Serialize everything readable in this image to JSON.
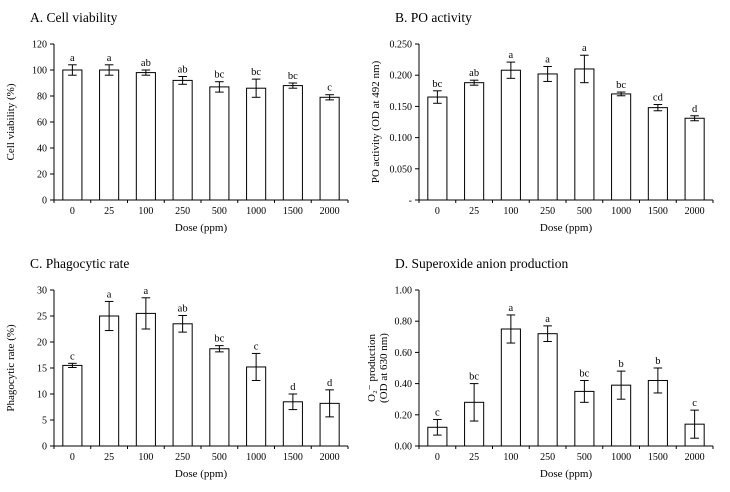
{
  "chart_data": [
    {
      "type": "bar",
      "panel": "A",
      "title": "A. Cell viability",
      "xlabel": "Dose (ppm)",
      "ylabel": "Cell viability  (%)",
      "ylim": [
        0,
        120
      ],
      "ytick_labels": [
        "0",
        "20",
        "40",
        "60",
        "80",
        "100",
        "120"
      ],
      "categories": [
        "0",
        "25",
        "100",
        "250",
        "500",
        "1000",
        "1500",
        "2000"
      ],
      "values": [
        100,
        100,
        98,
        92,
        87,
        86,
        88,
        79
      ],
      "errors": [
        4,
        4,
        2,
        3,
        4,
        7,
        2,
        2
      ],
      "sig_letters": [
        "a",
        "a",
        "ab",
        "ab",
        "bc",
        "bc",
        "bc",
        "c"
      ],
      "grid": false,
      "legend": "none",
      "bar_fill": "#ffffff",
      "bar_stroke": "#000000"
    },
    {
      "type": "bar",
      "panel": "B",
      "title": "B. PO activity",
      "xlabel": "Dose (ppm)",
      "ylabel": "PO activity (OD at 492 nm)",
      "ylim": [
        0,
        0.25
      ],
      "ytick_labels": [
        "-",
        "0.050",
        "0.100",
        "0.150",
        "0.200",
        "0.250"
      ],
      "categories": [
        "0",
        "25",
        "100",
        "250",
        "500",
        "1000",
        "1500",
        "2000"
      ],
      "values": [
        0.165,
        0.188,
        0.208,
        0.202,
        0.21,
        0.17,
        0.148,
        0.131
      ],
      "errors": [
        0.01,
        0.004,
        0.013,
        0.012,
        0.022,
        0.003,
        0.005,
        0.004
      ],
      "sig_letters": [
        "bc",
        "ab",
        "a",
        "a",
        "a",
        "bc",
        "cd",
        "d"
      ],
      "grid": false,
      "legend": "none",
      "bar_fill": "#ffffff",
      "bar_stroke": "#000000"
    },
    {
      "type": "bar",
      "panel": "C",
      "title": "C. Phagocytic rate",
      "xlabel": "Dose (ppm)",
      "ylabel": "Phagocytic rate (%)",
      "ylim": [
        0,
        30
      ],
      "ytick_labels": [
        "0",
        "5",
        "10",
        "15",
        "20",
        "25",
        "30"
      ],
      "categories": [
        "0",
        "25",
        "100",
        "250",
        "500",
        "1000",
        "1500",
        "2000"
      ],
      "values": [
        15.5,
        25.0,
        25.5,
        23.5,
        18.7,
        15.2,
        8.5,
        8.2
      ],
      "errors": [
        0.4,
        2.8,
        3.0,
        1.6,
        0.6,
        2.6,
        1.5,
        2.6
      ],
      "sig_letters": [
        "c",
        "a",
        "a",
        "ab",
        "bc",
        "c",
        "d",
        "d"
      ],
      "grid": false,
      "legend": "none",
      "bar_fill": "#ffffff",
      "bar_stroke": "#000000"
    },
    {
      "type": "bar",
      "panel": "D",
      "title": "D. Superoxide anion production",
      "xlabel": "Dose (ppm)",
      "ylabel": "O₂⁻ production\n(OD at  630 nm)",
      "ylim": [
        0,
        1.0
      ],
      "ytick_labels": [
        "0.00",
        "0.20",
        "0.40",
        "0.60",
        "0.80",
        "1.00"
      ],
      "categories": [
        "0",
        "25",
        "100",
        "250",
        "500",
        "1000",
        "1500",
        "2000"
      ],
      "values": [
        0.12,
        0.28,
        0.75,
        0.72,
        0.35,
        0.39,
        0.42,
        0.14
      ],
      "errors": [
        0.05,
        0.12,
        0.09,
        0.05,
        0.07,
        0.09,
        0.08,
        0.09
      ],
      "sig_letters": [
        "c",
        "bc",
        "a",
        "a",
        "bc",
        "b",
        "b",
        "c"
      ],
      "grid": false,
      "legend": "none",
      "bar_fill": "#ffffff",
      "bar_stroke": "#000000"
    }
  ]
}
